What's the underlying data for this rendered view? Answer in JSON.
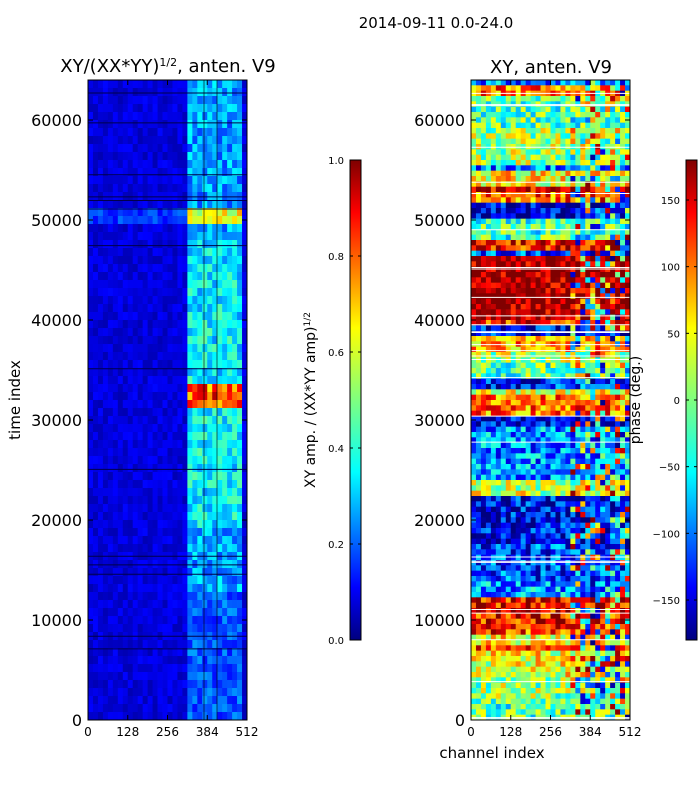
{
  "figure": {
    "suptitle": "2014-09-11 0.0-24.0"
  },
  "chart_data": [
    {
      "type": "heatmap",
      "title": "XY/(XX*YY)",
      "title_exponent": "1/2",
      "title_suffix": ", anten. V9",
      "xlabel": "",
      "ylabel": "time index",
      "xlim": [
        0,
        512
      ],
      "ylim": [
        0,
        64000
      ],
      "xticks": [
        "0",
        "128",
        "256",
        "384",
        "512"
      ],
      "yticks": [
        "0",
        "10000",
        "20000",
        "30000",
        "40000",
        "50000",
        "60000"
      ],
      "colormap": "jet",
      "colorbar": {
        "label": "XY amp. / (XX*YY amp)",
        "label_exponent": "1/2",
        "range": [
          0.0,
          1.0
        ],
        "ticks": [
          "0.0",
          "0.2",
          "0.4",
          "0.6",
          "0.8",
          "1.0"
        ]
      }
    },
    {
      "type": "heatmap",
      "title": "XY, anten. V9",
      "xlabel": "channel index",
      "ylabel": "",
      "xlim": [
        0,
        512
      ],
      "ylim": [
        0,
        64000
      ],
      "xticks": [
        "0",
        "128",
        "256",
        "384",
        "512"
      ],
      "yticks": [
        "0",
        "10000",
        "20000",
        "30000",
        "40000",
        "50000",
        "60000"
      ],
      "colormap": "jet",
      "colorbar": {
        "label": "phase (deg.)",
        "range": [
          -180,
          180
        ],
        "ticks": [
          "−150",
          "−100",
          "−50",
          "0",
          "50",
          "100",
          "150"
        ]
      }
    }
  ]
}
